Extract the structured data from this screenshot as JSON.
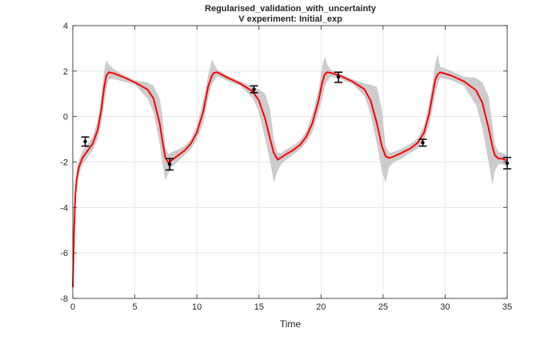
{
  "chart_data": {
    "type": "line",
    "title": "Regularised_validation_with_uncertainty",
    "subtitle": "V experiment: Initial_exp",
    "xlabel": "Time",
    "ylabel": "",
    "xlim": [
      0,
      35
    ],
    "ylim": [
      -8,
      4
    ],
    "xticks": [
      0,
      5,
      10,
      15,
      20,
      25,
      30,
      35
    ],
    "yticks": [
      -8,
      -6,
      -4,
      -2,
      0,
      2,
      4
    ],
    "grid": true,
    "colors": {
      "line": "#ff0000",
      "band": "#cccccc",
      "points": "#000000",
      "grid": "#e6e6e6",
      "axes": "#262626"
    },
    "series": [
      {
        "kind": "line",
        "x": [
          0,
          0.1,
          0.2,
          0.3,
          0.5,
          0.8,
          1.2,
          1.6,
          2.0,
          2.3,
          2.5,
          2.7,
          2.9,
          3.3,
          4.0,
          5.0,
          6.0,
          6.5,
          7.0,
          7.2,
          7.45,
          7.7,
          8.0,
          8.5,
          9.0,
          9.5,
          10.0,
          10.5,
          10.9,
          11.2,
          11.4,
          11.6,
          11.8,
          12.5,
          13.5,
          14.5,
          15.0,
          15.5,
          15.9,
          16.2,
          16.5,
          16.8,
          17.2,
          17.7,
          18.3,
          18.8,
          19.3,
          19.8,
          20.1,
          20.3,
          20.5,
          20.8,
          21.5,
          22.5,
          23.5,
          24.0,
          24.5,
          24.9,
          25.2,
          25.5,
          25.9,
          26.5,
          27.2,
          27.8,
          28.3,
          28.7,
          29.0,
          29.2,
          29.4,
          29.6,
          30.5,
          31.5,
          32.5,
          33.0,
          33.5,
          33.8,
          34.0,
          34.3,
          34.6,
          35.0
        ],
        "y": [
          -7.5,
          -5.0,
          -3.5,
          -2.8,
          -2.2,
          -1.8,
          -1.5,
          -1.2,
          -0.6,
          0.3,
          1.2,
          1.8,
          1.95,
          1.9,
          1.75,
          1.5,
          1.2,
          0.8,
          -0.3,
          -1.0,
          -1.8,
          -2.05,
          -1.9,
          -1.7,
          -1.5,
          -1.2,
          -0.7,
          0.2,
          1.3,
          1.8,
          1.93,
          1.95,
          1.9,
          1.7,
          1.45,
          1.1,
          0.7,
          -0.1,
          -1.0,
          -1.6,
          -1.9,
          -1.8,
          -1.65,
          -1.5,
          -1.25,
          -0.9,
          -0.3,
          0.7,
          1.5,
          1.85,
          1.95,
          1.92,
          1.8,
          1.55,
          1.2,
          0.7,
          -0.3,
          -1.3,
          -1.75,
          -1.82,
          -1.75,
          -1.6,
          -1.4,
          -1.15,
          -0.7,
          0.1,
          1.0,
          1.6,
          1.85,
          1.95,
          1.8,
          1.55,
          1.15,
          0.6,
          -0.5,
          -1.3,
          -1.7,
          -1.85,
          -1.85,
          -1.95
        ],
        "band_upper": [
          -7.2,
          -4.6,
          -3.1,
          -2.4,
          -1.9,
          -1.5,
          -1.2,
          -0.9,
          -0.2,
          0.9,
          1.9,
          2.5,
          2.3,
          2.1,
          1.85,
          1.6,
          1.5,
          1.35,
          0.8,
          0.1,
          -1.3,
          -1.65,
          -1.55,
          -1.45,
          -1.3,
          -1.0,
          -0.4,
          0.7,
          1.8,
          2.5,
          2.3,
          2.1,
          2.0,
          1.8,
          1.55,
          1.3,
          1.2,
          1.0,
          0.3,
          -1.0,
          -1.6,
          -1.6,
          -1.45,
          -1.3,
          -1.05,
          -0.65,
          0.1,
          1.2,
          2.2,
          2.65,
          2.3,
          2.05,
          1.9,
          1.65,
          1.45,
          1.4,
          1.3,
          0.3,
          -1.3,
          -1.6,
          -1.55,
          -1.4,
          -1.2,
          -0.95,
          -0.4,
          0.6,
          1.5,
          2.3,
          2.75,
          2.2,
          2.0,
          1.75,
          1.7,
          1.5,
          0.9,
          -0.3,
          -1.2,
          -1.55,
          -1.6,
          -1.7
        ],
        "band_lower": [
          -7.8,
          -5.4,
          -3.9,
          -3.2,
          -2.5,
          -2.1,
          -1.8,
          -1.5,
          -1.0,
          -0.3,
          0.5,
          1.2,
          1.65,
          1.65,
          1.55,
          1.4,
          0.8,
          0.2,
          -1.2,
          -2.0,
          -2.8,
          -2.5,
          -2.2,
          -1.95,
          -1.7,
          -1.45,
          -1.0,
          -0.3,
          0.8,
          1.4,
          1.6,
          1.75,
          1.75,
          1.55,
          1.35,
          0.8,
          0.2,
          -1.0,
          -2.0,
          -2.9,
          -2.4,
          -2.1,
          -1.9,
          -1.7,
          -1.45,
          -1.15,
          -0.7,
          0.2,
          0.8,
          1.3,
          1.55,
          1.75,
          1.65,
          1.45,
          0.9,
          0.1,
          -1.2,
          -2.4,
          -2.9,
          -2.2,
          -2.0,
          -1.85,
          -1.6,
          -1.4,
          -1.0,
          -0.4,
          0.4,
          1.0,
          1.4,
          1.7,
          1.6,
          1.35,
          0.5,
          -0.5,
          -2.0,
          -3.0,
          -2.4,
          -2.1,
          -2.1,
          -2.2
        ]
      },
      {
        "kind": "points",
        "x": [
          1.0,
          7.8,
          14.6,
          21.4,
          28.2,
          35.0
        ],
        "y": [
          -1.1,
          -2.1,
          1.2,
          1.75,
          -1.15,
          -2.05
        ],
        "err_low": [
          -1.3,
          -2.35,
          1.05,
          1.5,
          -1.3,
          -2.3
        ],
        "err_high": [
          -0.9,
          -1.85,
          1.35,
          1.95,
          -1.0,
          -1.8
        ]
      }
    ]
  }
}
